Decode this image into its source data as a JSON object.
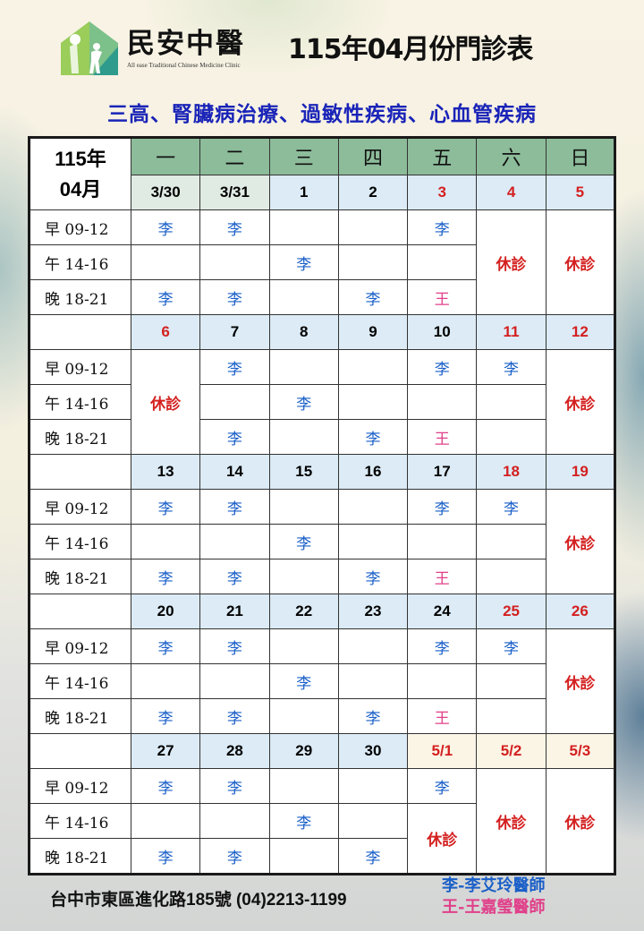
{
  "clinic": {
    "name": "民安中醫",
    "name_en": "All ease Traditional Chinese Medicine Clinic"
  },
  "title": "115年04月份門診表",
  "subtitle": "三高、腎臟病治療、過敏性疾病、心血管疾病",
  "colors": {
    "header_green": "#8dbc9a",
    "date_blue": "#dcebf6",
    "prev_month": "#e0ebe3",
    "next_month": "#fbf5e6",
    "holiday_red": "#d42020",
    "doctor_li": "#1a5fc8",
    "doctor_wang": "#e0408a"
  },
  "table": {
    "corner": [
      "115年",
      "04月"
    ],
    "weekdays": [
      "一",
      "二",
      "三",
      "四",
      "五",
      "六",
      "日"
    ],
    "slots": [
      "早 09-12",
      "午 14-16",
      "晚 18-21"
    ],
    "weeks": [
      {
        "dates": [
          {
            "label": "3/30",
            "red": false,
            "bg": "prev"
          },
          {
            "label": "3/31",
            "red": false,
            "bg": "prev"
          },
          {
            "label": "1",
            "red": false
          },
          {
            "label": "2",
            "red": false
          },
          {
            "label": "3",
            "red": true
          },
          {
            "label": "4",
            "red": true
          },
          {
            "label": "5",
            "red": true
          }
        ],
        "rows": [
          [
            "李",
            "李",
            "",
            "",
            "李",
            {
              "text": "休診",
              "rowspan": 3
            },
            {
              "text": "休診",
              "rowspan": 3
            }
          ],
          [
            "",
            "",
            "李",
            "",
            "",
            null,
            null
          ],
          [
            "李",
            "李",
            "",
            "李",
            "王",
            null,
            null
          ]
        ]
      },
      {
        "dates": [
          {
            "label": "6",
            "red": true
          },
          {
            "label": "7",
            "red": false
          },
          {
            "label": "8",
            "red": false
          },
          {
            "label": "9",
            "red": false
          },
          {
            "label": "10",
            "red": false
          },
          {
            "label": "11",
            "red": true
          },
          {
            "label": "12",
            "red": true
          }
        ],
        "rows": [
          [
            {
              "text": "休診",
              "rowspan": 3
            },
            "李",
            "",
            "",
            "李",
            "李",
            {
              "text": "休診",
              "rowspan": 3
            }
          ],
          [
            null,
            "",
            "李",
            "",
            "",
            "",
            null
          ],
          [
            null,
            "李",
            "",
            "李",
            "王",
            "",
            null
          ]
        ]
      },
      {
        "dates": [
          {
            "label": "13",
            "red": false
          },
          {
            "label": "14",
            "red": false
          },
          {
            "label": "15",
            "red": false
          },
          {
            "label": "16",
            "red": false
          },
          {
            "label": "17",
            "red": false
          },
          {
            "label": "18",
            "red": true
          },
          {
            "label": "19",
            "red": true
          }
        ],
        "rows": [
          [
            "李",
            "李",
            "",
            "",
            "李",
            "李",
            {
              "text": "休診",
              "rowspan": 3
            }
          ],
          [
            "",
            "",
            "李",
            "",
            "",
            "",
            null
          ],
          [
            "李",
            "李",
            "",
            "李",
            "王",
            "",
            null
          ]
        ]
      },
      {
        "dates": [
          {
            "label": "20",
            "red": false
          },
          {
            "label": "21",
            "red": false
          },
          {
            "label": "22",
            "red": false
          },
          {
            "label": "23",
            "red": false
          },
          {
            "label": "24",
            "red": false
          },
          {
            "label": "25",
            "red": true
          },
          {
            "label": "26",
            "red": true
          }
        ],
        "rows": [
          [
            "李",
            "李",
            "",
            "",
            "李",
            "李",
            {
              "text": "休診",
              "rowspan": 3
            }
          ],
          [
            "",
            "",
            "李",
            "",
            "",
            "",
            null
          ],
          [
            "李",
            "李",
            "",
            "李",
            "王",
            "",
            null
          ]
        ]
      },
      {
        "dates": [
          {
            "label": "27",
            "red": false
          },
          {
            "label": "28",
            "red": false
          },
          {
            "label": "29",
            "red": false
          },
          {
            "label": "30",
            "red": false
          },
          {
            "label": "5/1",
            "red": true,
            "bg": "next"
          },
          {
            "label": "5/2",
            "red": true,
            "bg": "next"
          },
          {
            "label": "5/3",
            "red": true,
            "bg": "next"
          }
        ],
        "rows": [
          [
            "李",
            "李",
            "",
            "",
            "李",
            {
              "text": "休診",
              "rowspan": 3
            },
            {
              "text": "休診",
              "rowspan": 3
            }
          ],
          [
            "",
            "",
            "李",
            "",
            {
              "text": "休診",
              "rowspan": 2
            },
            null,
            null
          ],
          [
            "李",
            "李",
            "",
            "李",
            null,
            null,
            null
          ]
        ]
      }
    ]
  },
  "footer": {
    "address": "台中市東區進化路185號  (04)2213-1199"
  },
  "legend": [
    {
      "text": "李-李艾玲醫師",
      "doctor": "li"
    },
    {
      "text": "王-王嘉瑩醫師",
      "doctor": "wang"
    }
  ]
}
